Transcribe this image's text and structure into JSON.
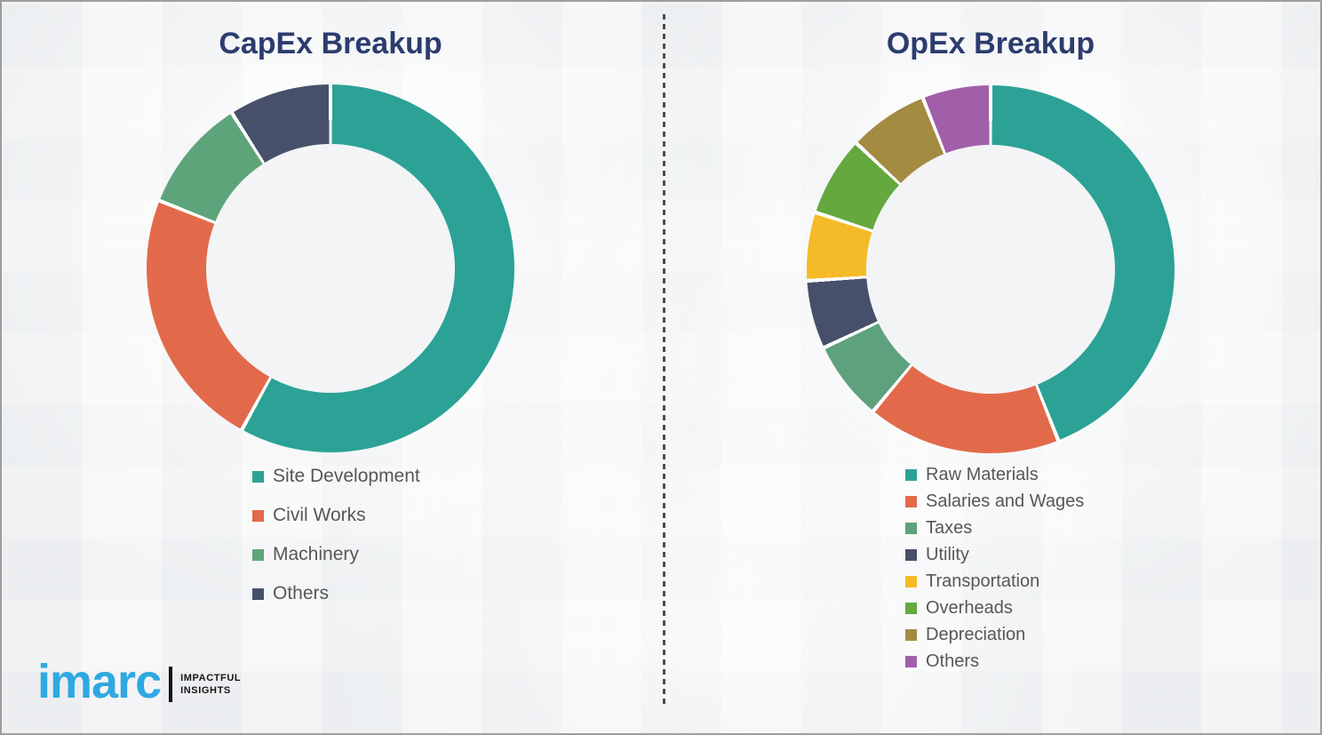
{
  "logo": {
    "brand": "imarc",
    "tagline_line1": "IMPACTFUL",
    "tagline_line2": "INSIGHTS",
    "brand_color": "#2FA8E1"
  },
  "chart_data": [
    {
      "type": "pie",
      "subtype": "donut",
      "title": "CapEx Breakup",
      "labels": [
        "Site Development",
        "Civil Works",
        "Machinery",
        "Others"
      ],
      "values": [
        58,
        23,
        10,
        9
      ],
      "values_note": "percent, estimated from arc angles (no data labels shown in chart)",
      "colors": [
        "#2BA295",
        "#E26A4B",
        "#5EA47B",
        "#46506A"
      ],
      "start_angle": "top",
      "direction": "clockwise",
      "legend_position": "below-left",
      "title_color": "#2C3C6E",
      "legend_text_color": "#575757"
    },
    {
      "type": "pie",
      "subtype": "donut",
      "title": "OpEx Breakup",
      "labels": [
        "Raw Materials",
        "Salaries and Wages",
        "Taxes",
        "Utility",
        "Transportation",
        "Overheads",
        "Depreciation",
        "Others"
      ],
      "values": [
        44,
        17,
        7,
        6,
        6,
        7,
        7,
        6
      ],
      "values_note": "percent, estimated from arc angles (no data labels shown in chart)",
      "colors": [
        "#2BA295",
        "#E26A4B",
        "#5EA17D",
        "#46506A",
        "#F5BA27",
        "#64A83E",
        "#A48B42",
        "#A05FA8"
      ],
      "start_angle": "top",
      "direction": "clockwise",
      "legend_position": "below-left",
      "title_color": "#2C3C6E",
      "legend_text_color": "#575757"
    }
  ]
}
